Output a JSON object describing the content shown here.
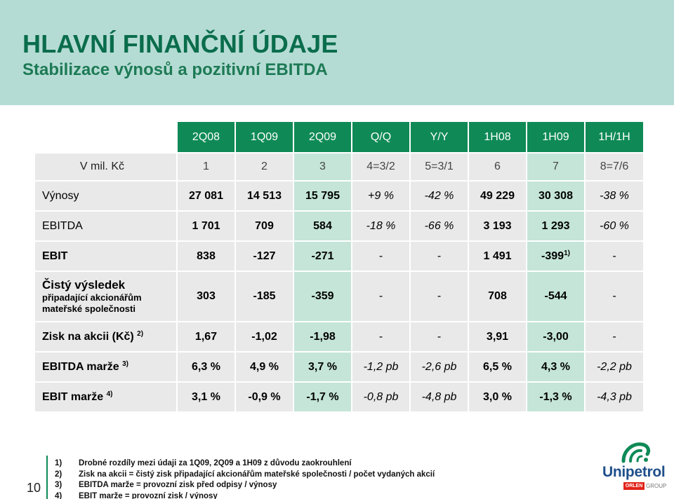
{
  "title": "HLAVNÍ FINANČNÍ ÚDAJE",
  "subtitle": "Stabilizace výnosů a pozitivní EBITDA",
  "table": {
    "columns": [
      "2Q08",
      "1Q09",
      "2Q09",
      "Q/Q",
      "Y/Y",
      "1H08",
      "1H09",
      "1H/1H"
    ],
    "unit_label": "V mil. Kč",
    "col_index": [
      "1",
      "2",
      "3",
      "4=3/2",
      "5=3/1",
      "6",
      "7",
      "8=7/6"
    ],
    "rows": [
      {
        "label": "Výnosy",
        "sup": "",
        "values": [
          "27 081",
          "14 513",
          "15 795",
          "+9 %",
          "-42 %",
          "49 229",
          "30 308",
          "-38 %"
        ],
        "sups": [
          "",
          "",
          "",
          "",
          "",
          "",
          "",
          ""
        ]
      },
      {
        "label": "EBITDA",
        "sup": "",
        "values": [
          "1 701",
          "709",
          "584",
          "-18 %",
          "-66 %",
          "3 193",
          "1 293",
          "-60 %"
        ],
        "sups": [
          "",
          "",
          "",
          "",
          "",
          "",
          "",
          ""
        ]
      },
      {
        "label": "EBIT",
        "sup": "",
        "values": [
          "838",
          "-127",
          "-271",
          "-",
          "-",
          "1 491",
          "-399",
          "-"
        ],
        "sups": [
          "",
          "",
          "",
          "",
          "",
          "",
          "1)",
          ""
        ]
      },
      {
        "label": "Čistý výsledek",
        "label_sub1": "připadající akcionářům",
        "label_sub2": "mateřské společnosti",
        "values": [
          "303",
          "-185",
          "-359",
          "-",
          "-",
          "708",
          "-544",
          "-"
        ]
      },
      {
        "label": "Zisk na akcii (Kč)",
        "sup": "2)",
        "values": [
          "1,67",
          "-1,02",
          "-1,98",
          "-",
          "-",
          "3,91",
          "-3,00",
          "-"
        ]
      },
      {
        "label": "EBITDA marže",
        "sup": "3)",
        "values": [
          "6,3 %",
          "4,9 %",
          "3,7 %",
          "-1,2 pb",
          "-2,6 pb",
          "6,5 %",
          "4,3 %",
          "-2,2 pb"
        ]
      },
      {
        "label": "EBIT marže",
        "sup": "4)",
        "values": [
          "3,1 %",
          "-0,9 %",
          "-1,7 %",
          "-0,8 pb",
          "-4,8 pb",
          "3,0 %",
          "-1,3 %",
          "-4,3 pb"
        ]
      }
    ]
  },
  "footnotes": [
    {
      "num": "1)",
      "text": "Drobné rozdíly mezi údaji za 1Q09, 2Q09 a 1H09 z důvodu zaokrouhlení"
    },
    {
      "num": "2)",
      "text": "Zisk na akcii = čistý zisk připadající akcionářům mateřské společnosti / počet vydaných akcií"
    },
    {
      "num": "3)",
      "text": "EBITDA marže = provozní zisk před odpisy / výnosy"
    },
    {
      "num": "4)",
      "text": "EBIT marže = provozní zisk / výnosy"
    }
  ],
  "page_number": "10",
  "logo": {
    "name": "Unipetrol",
    "badge": "ORLEN",
    "group": "GROUP"
  },
  "colors": {
    "header_band": "#b5dcd4",
    "title": "#0a6d4c",
    "table_header": "#0f8a56",
    "cell_grey": "#e9e9e9",
    "cell_green": "#c4e5d8"
  }
}
